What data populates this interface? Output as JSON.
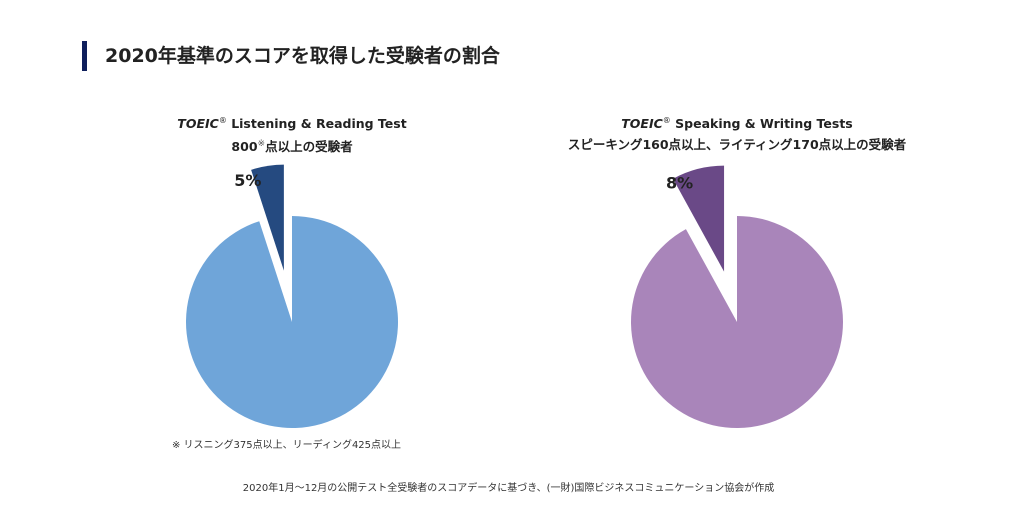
{
  "heading": "2020年基準のスコアを取得した受験者の割合",
  "chart_data": [
    {
      "type": "pie",
      "brand": "TOEIC",
      "reg_mark": "®",
      "title_line1": "Listening & Reading Test",
      "title_line2": "800",
      "title_mark": "※",
      "title_line2_rest": "点以上の受験者",
      "slices": [
        {
          "value": 5,
          "label": "5%",
          "color": "#254a80",
          "exploded": true
        },
        {
          "value": 95,
          "label": "",
          "color": "#6fa5d9",
          "exploded": false
        }
      ]
    },
    {
      "type": "pie",
      "brand": "TOEIC",
      "reg_mark": "®",
      "title_line1": "Speaking & Writing Tests",
      "title_line2": "スピーキング160点以上、ライティング170点以上の受験者",
      "slices": [
        {
          "value": 8,
          "label": "8%",
          "color": "#6a4987",
          "exploded": true
        },
        {
          "value": 92,
          "label": "",
          "color": "#a985ba",
          "exploded": false
        }
      ]
    }
  ],
  "footnote": "※ リスニング375点以上、リーディング425点以上",
  "source": "2020年1月〜12月の公開テスト全受験者のスコアデータに基づき、(一財)国際ビジネスコミュニケーション協会が作成"
}
